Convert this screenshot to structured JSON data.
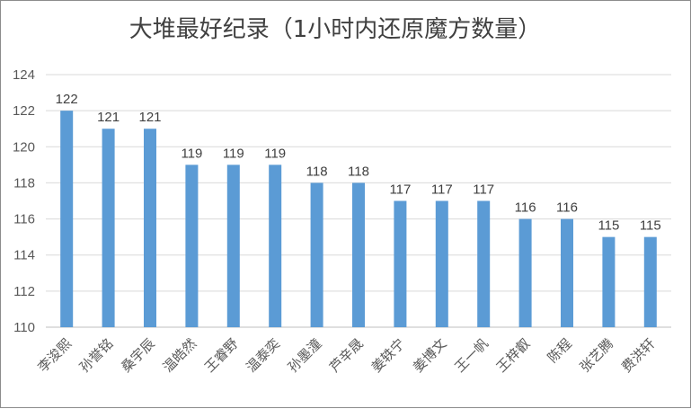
{
  "chart_data": {
    "type": "bar",
    "title": "大堆最好纪录（1小时内还原魔方数量）",
    "categories": [
      "李浚熙",
      "孙誉铭",
      "桑宇辰",
      "温皓然",
      "王睿野",
      "温泰奕",
      "孙墨潼",
      "芦辛晟",
      "姜轶宁",
      "姜博文",
      "王一帆",
      "王梓叡",
      "陈程",
      "张艺腾",
      "费洪轩"
    ],
    "values": [
      122,
      121,
      121,
      119,
      119,
      119,
      118,
      118,
      117,
      117,
      117,
      116,
      116,
      115,
      115
    ],
    "ylim": [
      110,
      124
    ],
    "yticks": [
      110,
      112,
      114,
      116,
      118,
      120,
      122,
      124
    ],
    "grid": true,
    "bar_color": "#5b9bd5",
    "xlabel": "",
    "ylabel": ""
  }
}
